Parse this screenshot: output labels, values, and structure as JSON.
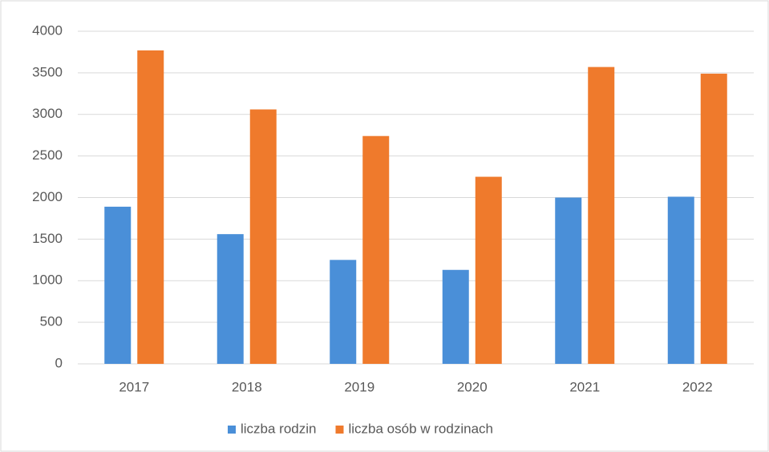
{
  "chart_data": {
    "type": "bar",
    "categories": [
      "2017",
      "2018",
      "2019",
      "2020",
      "2021",
      "2022"
    ],
    "series": [
      {
        "name": "liczba rodzin",
        "color": "#4a8fd8",
        "values": [
          1890,
          1560,
          1250,
          1130,
          2000,
          2010
        ]
      },
      {
        "name": "liczba osób w rodzinach",
        "color": "#ef7a2c",
        "values": [
          3770,
          3060,
          2740,
          2250,
          3570,
          3490
        ]
      }
    ],
    "ylim": [
      0,
      4000
    ],
    "yticks": [
      0,
      500,
      1000,
      1500,
      2000,
      2500,
      3000,
      3500,
      4000
    ],
    "grid": true,
    "legend": "bottom"
  }
}
